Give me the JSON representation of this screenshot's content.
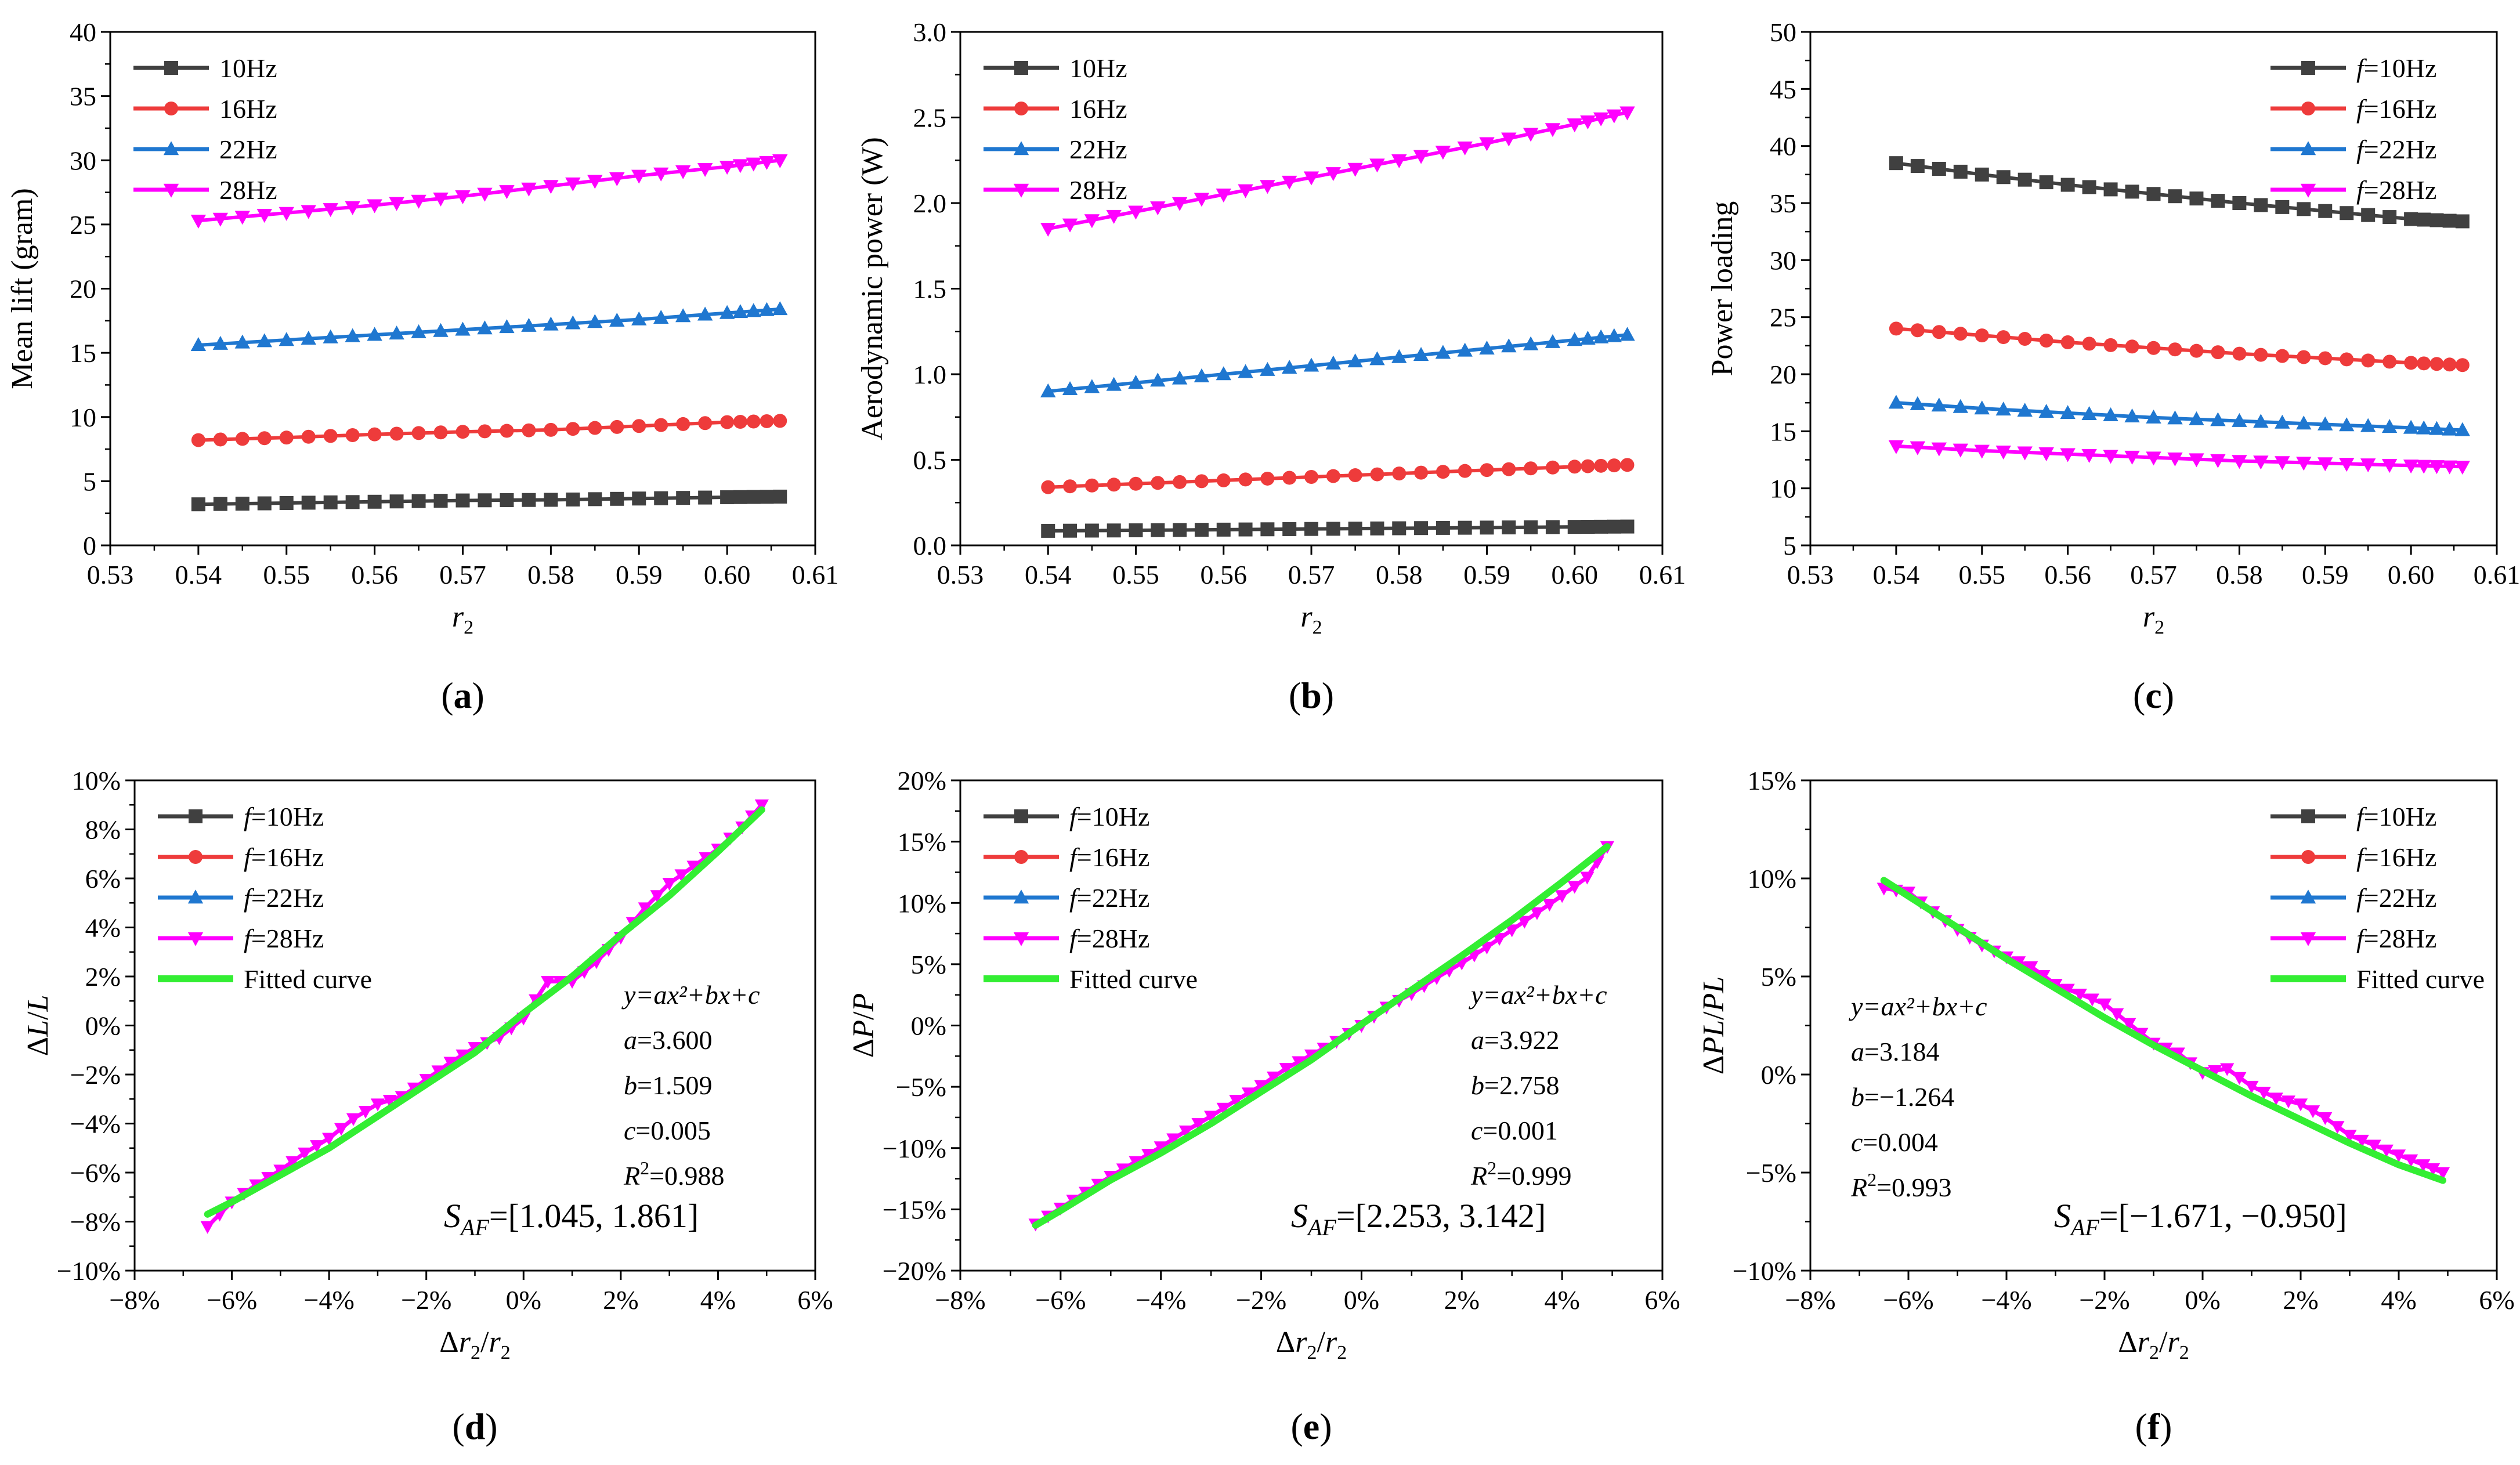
{
  "chart_data": [
    {
      "id": "a",
      "type": "line",
      "panel_label": "a",
      "xlabel": "r",
      "xlabel_sub": "2",
      "ylabel": "Mean lift (gram)",
      "xlim": [
        0.53,
        0.61
      ],
      "ylim": [
        0,
        40
      ],
      "x_ticks": [
        0.53,
        0.54,
        0.55,
        0.56,
        0.57,
        0.58,
        0.59,
        0.6,
        0.61
      ],
      "x_tick_labels": [
        "0.53",
        "0.54",
        "0.55",
        "0.56",
        "0.57",
        "0.58",
        "0.59",
        "0.60",
        "0.61"
      ],
      "y_ticks": [
        0,
        5,
        10,
        15,
        20,
        25,
        30,
        35,
        40
      ],
      "y_tick_labels": [
        "0",
        "5",
        "10",
        "15",
        "20",
        "25",
        "30",
        "35",
        "40"
      ],
      "legend_position": "top-left",
      "series": [
        {
          "name": "10Hz",
          "color": "#404040",
          "marker": "square",
          "x": [
            0.54,
            0.55,
            0.56,
            0.57,
            0.58,
            0.59,
            0.6,
            0.606
          ],
          "y": [
            3.2,
            3.3,
            3.4,
            3.5,
            3.55,
            3.65,
            3.75,
            3.8
          ]
        },
        {
          "name": "16Hz",
          "color": "#ee3b3b",
          "marker": "circle",
          "x": [
            0.54,
            0.55,
            0.56,
            0.57,
            0.58,
            0.59,
            0.6,
            0.606
          ],
          "y": [
            8.2,
            8.4,
            8.65,
            8.85,
            9.0,
            9.3,
            9.6,
            9.7
          ]
        },
        {
          "name": "22Hz",
          "color": "#1f77d0",
          "marker": "triangle-up",
          "x": [
            0.54,
            0.55,
            0.56,
            0.57,
            0.58,
            0.59,
            0.6,
            0.606
          ],
          "y": [
            15.6,
            16.0,
            16.4,
            16.8,
            17.2,
            17.6,
            18.1,
            18.4
          ]
        },
        {
          "name": "28Hz",
          "color": "#ff00ff",
          "marker": "triangle-down",
          "x": [
            0.54,
            0.55,
            0.56,
            0.57,
            0.58,
            0.59,
            0.6,
            0.606
          ],
          "y": [
            25.3,
            25.9,
            26.5,
            27.2,
            28.0,
            28.8,
            29.5,
            30.0
          ]
        }
      ]
    },
    {
      "id": "b",
      "type": "line",
      "panel_label": "b",
      "xlabel": "r",
      "xlabel_sub": "2",
      "ylabel": "Aerodynamic power (W)",
      "xlim": [
        0.53,
        0.61
      ],
      "ylim": [
        0,
        3.0
      ],
      "x_ticks": [
        0.53,
        0.54,
        0.55,
        0.56,
        0.57,
        0.58,
        0.59,
        0.6,
        0.61
      ],
      "x_tick_labels": [
        "0.53",
        "0.54",
        "0.55",
        "0.56",
        "0.57",
        "0.58",
        "0.59",
        "0.60",
        "0.61"
      ],
      "y_ticks": [
        0,
        0.5,
        1.0,
        1.5,
        2.0,
        2.5,
        3.0
      ],
      "y_tick_labels": [
        "0.0",
        "0.5",
        "1.0",
        "1.5",
        "2.0",
        "2.5",
        "3.0"
      ],
      "legend_position": "top-left",
      "series": [
        {
          "name": "10Hz",
          "color": "#404040",
          "marker": "square",
          "x": [
            0.54,
            0.55,
            0.56,
            0.57,
            0.58,
            0.59,
            0.6,
            0.606
          ],
          "y": [
            0.085,
            0.088,
            0.092,
            0.096,
            0.1,
            0.104,
            0.108,
            0.11
          ]
        },
        {
          "name": "16Hz",
          "color": "#ee3b3b",
          "marker": "circle",
          "x": [
            0.54,
            0.55,
            0.56,
            0.57,
            0.58,
            0.59,
            0.6,
            0.606
          ],
          "y": [
            0.34,
            0.36,
            0.38,
            0.4,
            0.42,
            0.44,
            0.46,
            0.47
          ]
        },
        {
          "name": "22Hz",
          "color": "#1f77d0",
          "marker": "triangle-up",
          "x": [
            0.54,
            0.55,
            0.56,
            0.57,
            0.58,
            0.59,
            0.6,
            0.606
          ],
          "y": [
            0.9,
            0.95,
            1.0,
            1.05,
            1.1,
            1.15,
            1.2,
            1.23
          ]
        },
        {
          "name": "28Hz",
          "color": "#ff00ff",
          "marker": "triangle-down",
          "x": [
            0.54,
            0.55,
            0.56,
            0.57,
            0.58,
            0.59,
            0.6,
            0.606
          ],
          "y": [
            1.85,
            1.95,
            2.05,
            2.15,
            2.25,
            2.35,
            2.46,
            2.53
          ]
        }
      ]
    },
    {
      "id": "c",
      "type": "line",
      "panel_label": "c",
      "xlabel": "r",
      "xlabel_sub": "2",
      "ylabel": "Power loading",
      "xlim": [
        0.53,
        0.61
      ],
      "ylim": [
        5,
        50
      ],
      "x_ticks": [
        0.53,
        0.54,
        0.55,
        0.56,
        0.57,
        0.58,
        0.59,
        0.6,
        0.61
      ],
      "x_tick_labels": [
        "0.53",
        "0.54",
        "0.55",
        "0.56",
        "0.57",
        "0.58",
        "0.59",
        "0.60",
        "0.61"
      ],
      "y_ticks": [
        5,
        10,
        15,
        20,
        25,
        30,
        35,
        40,
        45,
        50
      ],
      "y_tick_labels": [
        "5",
        "10",
        "15",
        "20",
        "25",
        "30",
        "35",
        "40",
        "45",
        "50"
      ],
      "legend_position": "top-right",
      "legend_prefix": "f",
      "series": [
        {
          "name": "=10Hz",
          "color": "#404040",
          "marker": "square",
          "x": [
            0.54,
            0.55,
            0.56,
            0.57,
            0.58,
            0.59,
            0.6,
            0.606
          ],
          "y": [
            38.5,
            37.5,
            36.6,
            35.8,
            35.0,
            34.3,
            33.6,
            33.4
          ]
        },
        {
          "name": "=16Hz",
          "color": "#ee3b3b",
          "marker": "circle",
          "x": [
            0.54,
            0.55,
            0.56,
            0.57,
            0.58,
            0.59,
            0.6,
            0.606
          ],
          "y": [
            24.0,
            23.4,
            22.8,
            22.3,
            21.8,
            21.4,
            21.0,
            20.8
          ]
        },
        {
          "name": "=22Hz",
          "color": "#1f77d0",
          "marker": "triangle-up",
          "x": [
            0.54,
            0.55,
            0.56,
            0.57,
            0.58,
            0.59,
            0.6,
            0.606
          ],
          "y": [
            17.5,
            17.0,
            16.6,
            16.2,
            15.9,
            15.6,
            15.3,
            15.1
          ]
        },
        {
          "name": "=28Hz",
          "color": "#ff00ff",
          "marker": "triangle-down",
          "x": [
            0.54,
            0.55,
            0.56,
            0.57,
            0.58,
            0.59,
            0.6,
            0.606
          ],
          "y": [
            13.7,
            13.3,
            13.0,
            12.7,
            12.4,
            12.2,
            12.0,
            11.9
          ]
        }
      ]
    },
    {
      "id": "d",
      "type": "line",
      "panel_label": "d",
      "xlabel": "Δr2/r2",
      "ylabel": "ΔL/L",
      "xlim": [
        -8,
        6
      ],
      "ylim": [
        -10,
        10
      ],
      "x_ticks": [
        -8,
        -6,
        -4,
        -2,
        0,
        2,
        4,
        6
      ],
      "x_tick_labels": [
        "−8%",
        "−6%",
        "−4%",
        "−2%",
        "0%",
        "2%",
        "4%",
        "6%"
      ],
      "y_ticks": [
        -10,
        -8,
        -6,
        -4,
        -2,
        0,
        2,
        4,
        6,
        8,
        10
      ],
      "y_tick_labels": [
        "−10%",
        "−8%",
        "−6%",
        "−4%",
        "−2%",
        "0%",
        "2%",
        "4%",
        "6%",
        "8%",
        "10%"
      ],
      "legend_position": "top-left",
      "legend_prefix": "f",
      "series": [
        {
          "name": "=10Hz",
          "color": "#404040",
          "marker": "square"
        },
        {
          "name": "=16Hz",
          "color": "#ee3b3b",
          "marker": "circle"
        },
        {
          "name": "=22Hz",
          "color": "#1f77d0",
          "marker": "triangle-up"
        },
        {
          "name": "=28Hz",
          "color": "#ff00ff",
          "marker": "triangle-down",
          "x": [
            -6.5,
            -6.0,
            -5.5,
            -5.0,
            -4.5,
            -4.0,
            -3.5,
            -3.0,
            -2.5,
            -2.0,
            -1.5,
            -1.0,
            -0.5,
            0.0,
            0.5,
            1.0,
            1.5,
            2.0,
            2.5,
            3.0,
            3.5,
            4.0,
            4.5,
            4.9
          ],
          "y": [
            -8.2,
            -7.2,
            -6.5,
            -5.9,
            -5.2,
            -4.6,
            -3.8,
            -3.2,
            -2.9,
            -2.2,
            -1.5,
            -0.9,
            -0.5,
            0.3,
            1.8,
            1.8,
            2.6,
            3.6,
            4.8,
            5.8,
            6.5,
            7.2,
            8.1,
            9.0
          ]
        },
        {
          "name": "Fitted curve",
          "color": "#33ee33",
          "marker": "none",
          "x": [
            -6.5,
            -6.0,
            -5.0,
            -4.0,
            -3.0,
            -2.0,
            -1.0,
            0.0,
            1.0,
            2.0,
            3.0,
            4.0,
            4.9
          ],
          "y": [
            -7.7,
            -7.2,
            -6.1,
            -5.0,
            -3.7,
            -2.4,
            -1.1,
            0.5,
            2.0,
            3.7,
            5.3,
            7.1,
            8.8
          ]
        }
      ],
      "fit_equation": "y=ax²+bx+c",
      "fit_params": {
        "a": "a=3.600",
        "b": "b=1.509",
        "c": "c=0.005",
        "r2": "=0.988"
      },
      "sensitivity": "=[1.045, 1.861]"
    },
    {
      "id": "e",
      "type": "line",
      "panel_label": "e",
      "xlabel": "Δr2/r2",
      "ylabel": "ΔP/P",
      "xlim": [
        -8,
        6
      ],
      "ylim": [
        -20,
        20
      ],
      "x_ticks": [
        -8,
        -6,
        -4,
        -2,
        0,
        2,
        4,
        6
      ],
      "x_tick_labels": [
        "−8%",
        "−6%",
        "−4%",
        "−2%",
        "0%",
        "2%",
        "4%",
        "6%"
      ],
      "y_ticks": [
        -20,
        -15,
        -10,
        -5,
        0,
        5,
        10,
        15,
        20
      ],
      "y_tick_labels": [
        "−20%",
        "−15%",
        "−10%",
        "−5%",
        "0%",
        "5%",
        "10%",
        "15%",
        "20%"
      ],
      "legend_position": "top-left",
      "legend_prefix": "f",
      "series": [
        {
          "name": "=10Hz",
          "color": "#404040",
          "marker": "square"
        },
        {
          "name": "=16Hz",
          "color": "#ee3b3b",
          "marker": "circle"
        },
        {
          "name": "=22Hz",
          "color": "#1f77d0",
          "marker": "triangle-up"
        },
        {
          "name": "=28Hz",
          "color": "#ff00ff",
          "marker": "triangle-down",
          "x": [
            -6.5,
            -6.0,
            -5.5,
            -5.0,
            -4.5,
            -4.0,
            -3.5,
            -3.0,
            -2.5,
            -2.0,
            -1.5,
            -1.0,
            -0.5,
            0.0,
            0.5,
            1.0,
            1.5,
            2.0,
            2.5,
            3.0,
            3.5,
            4.0,
            4.5,
            4.9
          ],
          "y": [
            -16.2,
            -14.9,
            -13.6,
            -12.3,
            -11.1,
            -9.9,
            -8.6,
            -7.4,
            -6.1,
            -4.9,
            -3.5,
            -2.4,
            -1.3,
            0.0,
            1.5,
            2.6,
            3.9,
            5.1,
            6.4,
            7.8,
            9.2,
            10.6,
            12.1,
            14.6
          ]
        },
        {
          "name": "Fitted curve",
          "color": "#33ee33",
          "marker": "none",
          "x": [
            -6.5,
            -6.0,
            -5.0,
            -4.0,
            -3.0,
            -2.0,
            -1.0,
            0.0,
            1.0,
            2.0,
            3.0,
            4.0,
            4.9
          ],
          "y": [
            -16.3,
            -15.1,
            -12.6,
            -10.4,
            -8.0,
            -5.4,
            -2.8,
            0.1,
            2.9,
            5.7,
            8.6,
            11.7,
            14.6
          ]
        }
      ],
      "fit_equation": "y=ax²+bx+c",
      "fit_params": {
        "a": "a=3.922",
        "b": "b=2.758",
        "c": "c=0.001",
        "r2": "=0.999"
      },
      "sensitivity": "=[2.253, 3.142]"
    },
    {
      "id": "f",
      "type": "line",
      "panel_label": "f",
      "xlabel": "Δr2/r2",
      "ylabel": "ΔPL/PL",
      "xlim": [
        -8,
        6
      ],
      "ylim": [
        -10,
        15
      ],
      "x_ticks": [
        -8,
        -6,
        -4,
        -2,
        0,
        2,
        4,
        6
      ],
      "x_tick_labels": [
        "−8%",
        "−6%",
        "−4%",
        "−2%",
        "0%",
        "2%",
        "4%",
        "6%"
      ],
      "y_ticks": [
        -10,
        -5,
        0,
        5,
        10,
        15
      ],
      "y_tick_labels": [
        "−10%",
        "−5%",
        "0%",
        "5%",
        "10%",
        "15%"
      ],
      "legend_position": "top-right",
      "legend_prefix": "f",
      "series": [
        {
          "name": "=10Hz",
          "color": "#404040",
          "marker": "square"
        },
        {
          "name": "=16Hz",
          "color": "#ee3b3b",
          "marker": "circle"
        },
        {
          "name": "=22Hz",
          "color": "#1f77d0",
          "marker": "triangle-up"
        },
        {
          "name": "=28Hz",
          "color": "#ff00ff",
          "marker": "triangle-down",
          "x": [
            -6.5,
            -6.0,
            -5.5,
            -5.0,
            -4.5,
            -4.0,
            -3.5,
            -3.0,
            -2.5,
            -2.0,
            -1.5,
            -1.0,
            -0.5,
            0.0,
            0.5,
            1.0,
            1.5,
            2.0,
            2.5,
            3.0,
            3.5,
            4.0,
            4.5,
            4.9
          ],
          "y": [
            9.5,
            9.3,
            8.3,
            7.4,
            6.6,
            6.0,
            5.5,
            4.6,
            4.1,
            3.6,
            2.6,
            1.6,
            1.1,
            0.1,
            0.3,
            -0.6,
            -1.2,
            -1.5,
            -2.2,
            -3.1,
            -3.6,
            -4.1,
            -4.6,
            -5.0
          ]
        },
        {
          "name": "Fitted curve",
          "color": "#33ee33",
          "marker": "none",
          "x": [
            -6.5,
            -6.0,
            -5.0,
            -4.0,
            -3.0,
            -2.0,
            -1.0,
            0.0,
            1.0,
            2.0,
            3.0,
            4.0,
            4.9
          ],
          "y": [
            9.9,
            9.1,
            7.5,
            5.9,
            4.4,
            2.9,
            1.5,
            0.2,
            -1.1,
            -2.3,
            -3.5,
            -4.6,
            -5.4
          ]
        }
      ],
      "fit_equation": "y=ax²+bx+c",
      "fit_params": {
        "a": "a=3.184",
        "b": "b=−1.264",
        "c": "c=0.004",
        "r2": "=0.993"
      },
      "sensitivity": "=[−1.671, −0.950]"
    }
  ]
}
